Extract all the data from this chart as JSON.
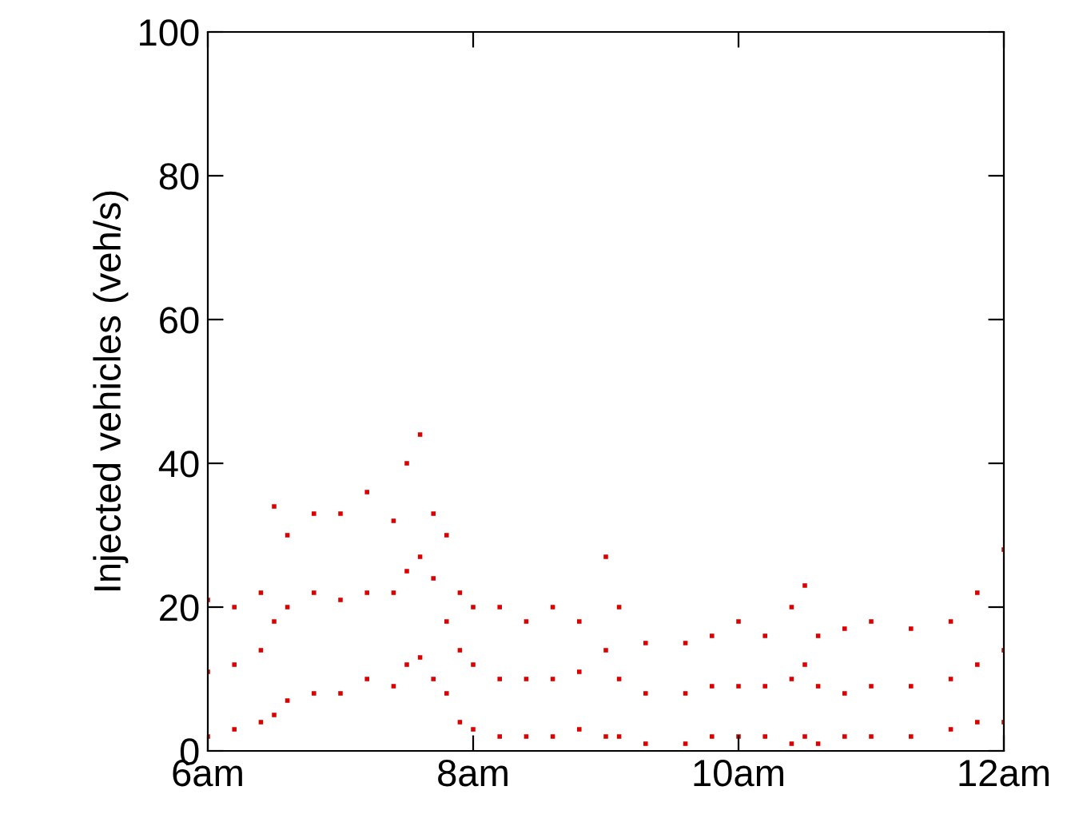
{
  "chart_data": {
    "type": "scatter",
    "ylabel": "Injected vehicles (veh/s)",
    "xlim": [
      6,
      12
    ],
    "xticks": [
      {
        "value": 6,
        "label": "6am"
      },
      {
        "value": 8,
        "label": "8am"
      },
      {
        "value": 10,
        "label": "10am"
      },
      {
        "value": 12,
        "label": "12am"
      }
    ],
    "ylim": [
      0,
      100
    ],
    "yticks": [
      0,
      20,
      40,
      60,
      80,
      100
    ],
    "grid": false,
    "marker": "square",
    "series": [
      {
        "color": "#dd0000",
        "x": [
          6.0,
          6.0,
          6.0,
          6.2,
          6.2,
          6.2,
          6.4,
          6.4,
          6.4,
          6.5,
          6.5,
          6.5,
          6.6,
          6.6,
          6.6,
          6.8,
          6.8,
          6.8,
          7.0,
          7.0,
          7.0,
          7.2,
          7.2,
          7.2,
          7.4,
          7.4,
          7.4,
          7.5,
          7.5,
          7.5,
          7.6,
          7.6,
          7.6,
          7.7,
          7.7,
          7.7,
          7.8,
          7.8,
          7.8,
          7.9,
          7.9,
          7.9,
          8.0,
          8.0,
          8.0,
          8.2,
          8.2,
          8.2,
          8.4,
          8.4,
          8.4,
          8.6,
          8.6,
          8.6,
          8.8,
          8.8,
          8.8,
          9.0,
          9.0,
          9.0,
          9.1,
          9.1,
          9.1,
          9.3,
          9.3,
          9.3,
          9.6,
          9.6,
          9.6,
          9.8,
          9.8,
          9.8,
          10.0,
          10.0,
          10.0,
          10.2,
          10.2,
          10.2,
          10.4,
          10.4,
          10.4,
          10.5,
          10.5,
          10.5,
          10.6,
          10.6,
          10.6,
          10.8,
          10.8,
          10.8,
          11.0,
          11.0,
          11.0,
          11.3,
          11.3,
          11.3,
          11.6,
          11.6,
          11.6,
          11.8,
          11.8,
          11.8,
          12.0,
          12.0,
          12.0
        ],
        "values": [
          2,
          11,
          21,
          3,
          12,
          20,
          4,
          14,
          22,
          5,
          18,
          34,
          7,
          20,
          30,
          8,
          22,
          33,
          8,
          21,
          33,
          10,
          22,
          36,
          9,
          22,
          32,
          12,
          25,
          40,
          13,
          27,
          44,
          10,
          24,
          33,
          8,
          18,
          30,
          4,
          14,
          22,
          3,
          12,
          20,
          2,
          10,
          20,
          2,
          10,
          18,
          2,
          10,
          20,
          3,
          11,
          18,
          2,
          14,
          27,
          2,
          10,
          20,
          1,
          8,
          15,
          1,
          8,
          15,
          2,
          9,
          16,
          2,
          9,
          18,
          2,
          9,
          16,
          1,
          10,
          20,
          2,
          12,
          23,
          1,
          9,
          16,
          2,
          8,
          17,
          2,
          9,
          18,
          2,
          9,
          17,
          3,
          10,
          18,
          4,
          12,
          22,
          4,
          14,
          28
        ]
      }
    ]
  }
}
